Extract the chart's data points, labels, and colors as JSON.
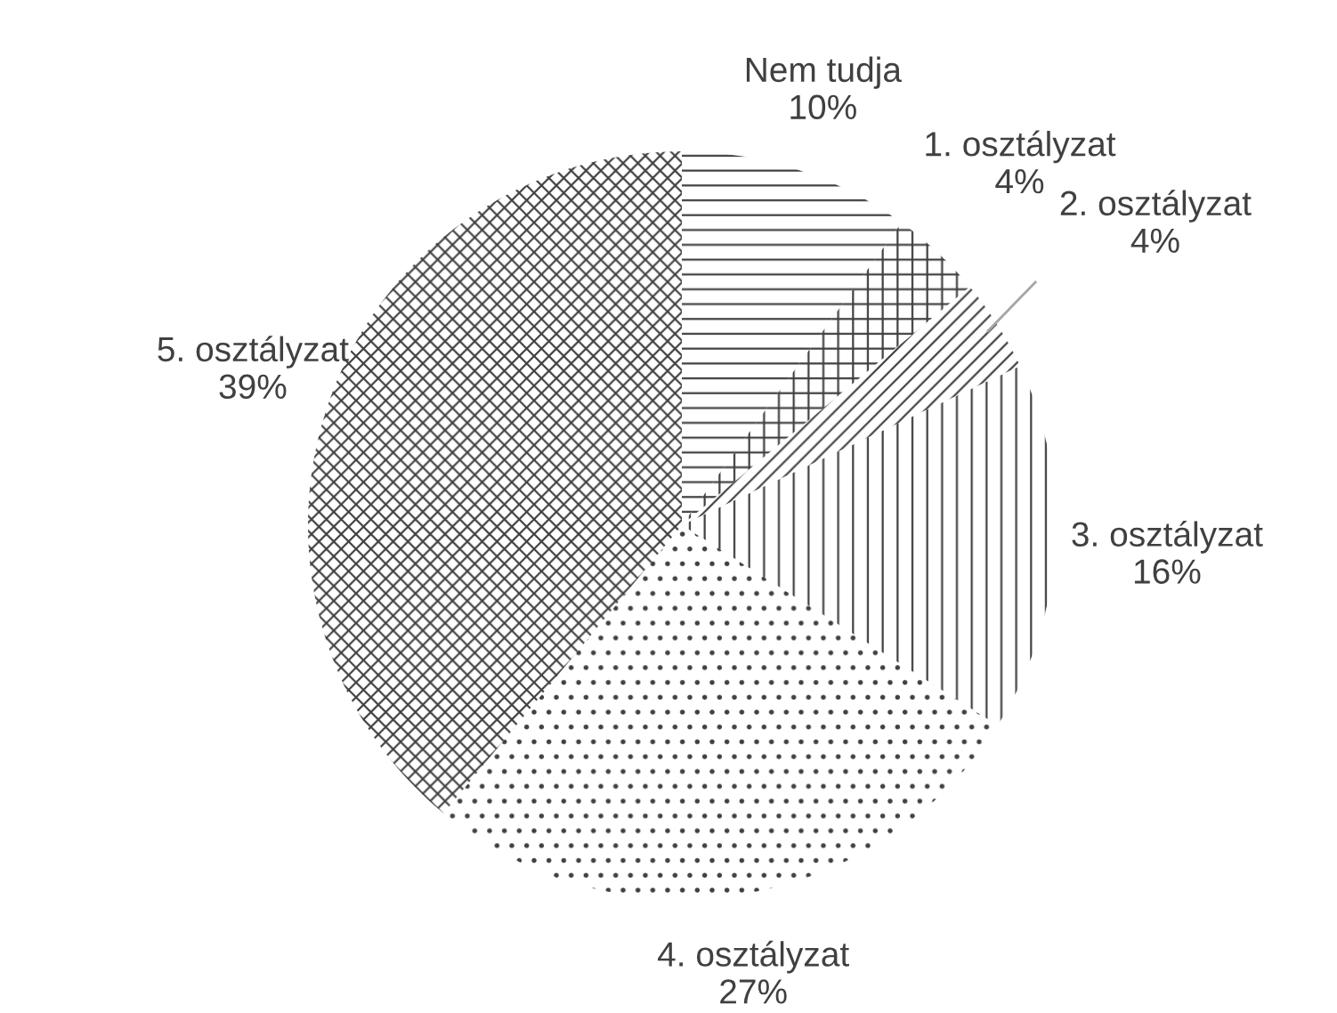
{
  "chart_data": {
    "type": "pie",
    "categories": [
      "Nem tudja",
      "1. osztályzat",
      "2. osztályzat",
      "3. osztályzat",
      "4. osztályzat",
      "5. osztályzat"
    ],
    "values": [
      10,
      4,
      4,
      16,
      27,
      39
    ],
    "value_labels": [
      "10%",
      "4%",
      "4%",
      "16%",
      "27%",
      "39%"
    ],
    "colors": [
      "#ffffff",
      "#ffffff",
      "#ffffff",
      "#ffffff",
      "#ffffff",
      "#ffffff"
    ],
    "legend": false
  }
}
